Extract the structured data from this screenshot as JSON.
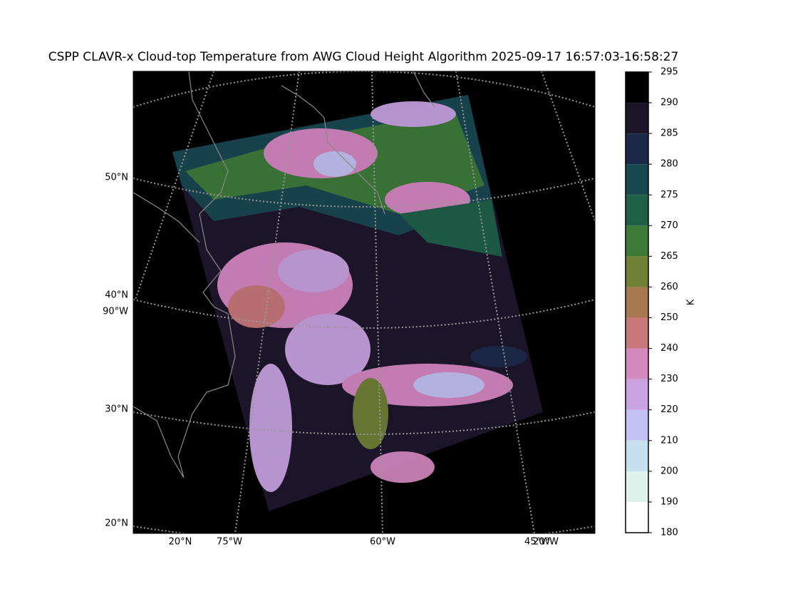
{
  "title": "CSPP CLAVR-x Cloud-top Temperature from AWG Cloud Height Algorithm 2025-09-17 16:57:03-16:58:27",
  "map": {
    "lat_labels": [
      "50°N",
      "40°N",
      "90°W",
      "30°N",
      "20°N"
    ],
    "lon_labels": [
      "20°N",
      "75°W",
      "60°W",
      "45°W",
      "20°W"
    ]
  },
  "colorbar": {
    "label": "K",
    "levels": [
      180,
      190,
      200,
      210,
      220,
      230,
      240,
      250,
      260,
      265,
      270,
      275,
      280,
      285,
      290,
      295
    ],
    "colors": [
      "#ffffff",
      "#dff3ec",
      "#c6e0f0",
      "#c4c2f2",
      "#c9a2e0",
      "#d488c0",
      "#c87878",
      "#a87850",
      "#708034",
      "#3d7a38",
      "#1e6048",
      "#174850",
      "#1c2848",
      "#1c1428",
      "#000000"
    ]
  }
}
